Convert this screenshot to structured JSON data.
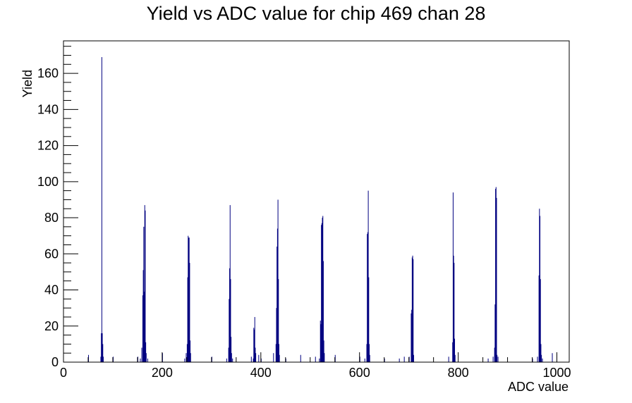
{
  "chart_data": {
    "type": "bar",
    "title": "Yield vs ADC value for chip 469 chan 28",
    "xlabel": "ADC value",
    "ylabel": "Yield",
    "xlim": [
      0,
      1025
    ],
    "ylim": [
      0,
      178
    ],
    "x_ticks": [
      0,
      200,
      400,
      600,
      800,
      1000
    ],
    "y_ticks": [
      0,
      20,
      40,
      60,
      80,
      100,
      120,
      140,
      160
    ],
    "x_minor_step": 50,
    "y_minor_step": 5,
    "grid": false,
    "legend": "none",
    "series_color": "#000080",
    "series": [
      {
        "bins": [
          [
            50,
            4
          ],
          [
            75,
            3
          ],
          [
            76,
            16
          ],
          [
            77,
            169
          ],
          [
            78,
            16
          ],
          [
            79,
            10
          ],
          [
            80,
            3
          ],
          [
            100,
            3
          ],
          [
            150,
            3
          ],
          [
            155,
            2
          ],
          [
            158,
            8
          ],
          [
            160,
            37
          ],
          [
            161,
            51
          ],
          [
            162,
            75
          ],
          [
            163,
            39
          ],
          [
            164,
            87
          ],
          [
            165,
            84
          ],
          [
            166,
            11
          ],
          [
            167,
            5
          ],
          [
            170,
            2
          ],
          [
            200,
            5
          ],
          [
            245,
            2
          ],
          [
            248,
            5
          ],
          [
            250,
            10
          ],
          [
            251,
            47
          ],
          [
            252,
            70
          ],
          [
            253,
            69
          ],
          [
            254,
            69
          ],
          [
            255,
            55
          ],
          [
            256,
            12
          ],
          [
            257,
            5
          ],
          [
            300,
            3
          ],
          [
            330,
            2
          ],
          [
            334,
            8
          ],
          [
            335,
            35
          ],
          [
            336,
            52
          ],
          [
            337,
            87
          ],
          [
            338,
            46
          ],
          [
            339,
            14
          ],
          [
            340,
            5
          ],
          [
            342,
            2
          ],
          [
            380,
            3
          ],
          [
            384,
            2
          ],
          [
            385,
            19
          ],
          [
            386,
            18
          ],
          [
            387,
            25
          ],
          [
            388,
            8
          ],
          [
            389,
            5
          ],
          [
            395,
            4
          ],
          [
            400,
            2
          ],
          [
            425,
            5
          ],
          [
            430,
            10
          ],
          [
            431,
            30
          ],
          [
            432,
            64
          ],
          [
            433,
            74
          ],
          [
            434,
            90
          ],
          [
            435,
            46
          ],
          [
            436,
            10
          ],
          [
            437,
            4
          ],
          [
            450,
            2
          ],
          [
            480,
            4
          ],
          [
            510,
            3
          ],
          [
            518,
            2
          ],
          [
            520,
            23
          ],
          [
            521,
            21
          ],
          [
            522,
            76
          ],
          [
            523,
            77
          ],
          [
            524,
            80
          ],
          [
            525,
            81
          ],
          [
            526,
            56
          ],
          [
            527,
            12
          ],
          [
            528,
            5
          ],
          [
            550,
            4
          ],
          [
            600,
            3
          ],
          [
            610,
            2
          ],
          [
            614,
            10
          ],
          [
            615,
            71
          ],
          [
            616,
            72
          ],
          [
            617,
            95
          ],
          [
            618,
            47
          ],
          [
            619,
            10
          ],
          [
            620,
            4
          ],
          [
            650,
            2
          ],
          [
            680,
            2
          ],
          [
            690,
            3
          ],
          [
            700,
            3
          ],
          [
            704,
            27
          ],
          [
            705,
            29
          ],
          [
            706,
            58
          ],
          [
            707,
            59
          ],
          [
            708,
            57
          ],
          [
            709,
            4
          ],
          [
            780,
            3
          ],
          [
            788,
            11
          ],
          [
            789,
            94
          ],
          [
            790,
            59
          ],
          [
            791,
            55
          ],
          [
            792,
            13
          ],
          [
            793,
            4
          ],
          [
            860,
            2
          ],
          [
            870,
            3
          ],
          [
            873,
            8
          ],
          [
            874,
            32
          ],
          [
            875,
            96
          ],
          [
            876,
            97
          ],
          [
            877,
            91
          ],
          [
            878,
            4
          ],
          [
            880,
            3
          ],
          [
            950,
            2
          ],
          [
            960,
            3
          ],
          [
            963,
            48
          ],
          [
            964,
            85
          ],
          [
            965,
            81
          ],
          [
            966,
            46
          ],
          [
            967,
            10
          ],
          [
            968,
            4
          ],
          [
            970,
            2
          ],
          [
            990,
            5
          ]
        ]
      }
    ]
  }
}
